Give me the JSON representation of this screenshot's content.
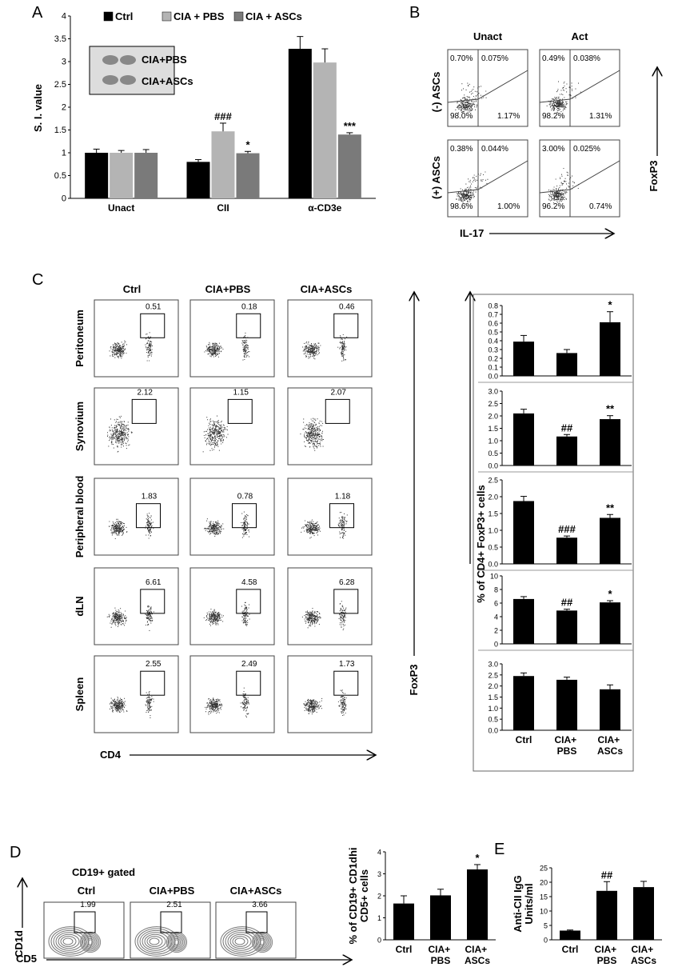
{
  "panel_labels": [
    "A",
    "B",
    "C",
    "D",
    "E"
  ],
  "chart_data": [
    {
      "type": "grouped-bar",
      "y_label": "S. I. value",
      "categories": [
        "Unact",
        "CII",
        "α-CD3e"
      ],
      "series": [
        {
          "name": "Ctrl",
          "color": "#000000",
          "values": [
            1.0,
            0.8,
            3.28
          ],
          "errors": [
            0.08,
            0.05,
            0.27
          ],
          "value_annotations": [
            null,
            null,
            null
          ]
        },
        {
          "name": "CIA + PBS",
          "color": "#b4b4b4",
          "values": [
            1.0,
            1.47,
            2.98
          ],
          "errors": [
            0.05,
            0.18,
            0.3
          ],
          "value_annotations": [
            null,
            "###",
            null
          ]
        },
        {
          "name": "CIA + ASCs",
          "color": "#7a7a7a",
          "values": [
            1.0,
            0.99,
            1.4
          ],
          "errors": [
            0.07,
            0.04,
            0.04
          ],
          "value_annotations": [
            null,
            "*",
            "***"
          ]
        }
      ],
      "ylim": [
        0,
        4
      ],
      "yticks": [
        0,
        0.5,
        1,
        1.5,
        2,
        2.5,
        3,
        3.5,
        4
      ],
      "inset_labels": [
        "CIA+PBS",
        "CIA+ASCs"
      ]
    },
    {
      "type": "bar",
      "color": "#000000",
      "values": [
        0.39,
        0.26,
        0.61
      ],
      "errors": [
        0.07,
        0.04,
        0.12
      ],
      "value_annotations": [
        null,
        null,
        "*"
      ],
      "ylim": [
        0,
        0.8
      ],
      "yticks": [
        {
          "value": 0,
          "label": "0.0"
        },
        0.1,
        0.2,
        0.3,
        0.4,
        0.5,
        0.6,
        0.7,
        0.8
      ]
    },
    {
      "type": "bar",
      "color": "#000000",
      "values": [
        2.1,
        1.17,
        1.87
      ],
      "errors": [
        0.17,
        0.08,
        0.14
      ],
      "value_annotations": [
        null,
        "##",
        "**"
      ],
      "ylim": [
        0,
        3
      ],
      "yticks": [
        {
          "value": 0,
          "label": "0.0"
        },
        0.5,
        {
          "value": 1,
          "label": "1.0"
        },
        1.5,
        {
          "value": 2,
          "label": "2.0"
        },
        2.5,
        {
          "value": 3,
          "label": "3.0"
        }
      ]
    },
    {
      "type": "bar",
      "color": "#000000",
      "values": [
        1.87,
        0.78,
        1.37
      ],
      "errors": [
        0.14,
        0.05,
        0.1
      ],
      "value_annotations": [
        null,
        "###",
        "**"
      ],
      "ylim": [
        0,
        2.5
      ],
      "yticks": [
        {
          "value": 0,
          "label": "0.0"
        },
        0.5,
        {
          "value": 1,
          "label": "1.0"
        },
        1.5,
        {
          "value": 2,
          "label": "2.0"
        },
        2.5
      ]
    },
    {
      "type": "bar",
      "color": "#000000",
      "values": [
        6.6,
        4.9,
        6.1
      ],
      "errors": [
        0.35,
        0.2,
        0.25
      ],
      "value_annotations": [
        null,
        "##",
        "*"
      ],
      "ylim": [
        0,
        10
      ],
      "yticks": [
        0,
        2,
        4,
        6,
        8,
        10
      ]
    },
    {
      "type": "bar",
      "color": "#000000",
      "values": [
        2.45,
        2.28,
        1.85
      ],
      "errors": [
        0.14,
        0.12,
        0.2
      ],
      "value_annotations": [
        null,
        null,
        null
      ],
      "ylim": [
        0,
        3
      ],
      "yticks": [
        {
          "value": 0,
          "label": "0.0"
        },
        0.5,
        {
          "value": 1,
          "label": "1.0"
        },
        1.5,
        {
          "value": 2,
          "label": "2.0"
        },
        2.5,
        {
          "value": 3,
          "label": "3.0"
        }
      ],
      "categories": [
        "Ctrl",
        "CIA+ PBS",
        "CIA+ ASCs"
      ],
      "y_label": "% of CD4+ FoxP3+ cells"
    },
    {
      "type": "bar",
      "color": "#000000",
      "values": [
        1.65,
        2.02,
        3.2
      ],
      "errors": [
        0.35,
        0.28,
        0.22
      ],
      "value_annotations": [
        null,
        null,
        "*"
      ],
      "ylim": [
        0,
        4
      ],
      "yticks": [
        0,
        1,
        2,
        3,
        4
      ],
      "categories": [
        "Ctrl",
        "CIA+ PBS",
        "CIA+ ASCs"
      ],
      "y_label": [
        "% of CD19+ CD1dhi",
        "CD5+ cells"
      ]
    },
    {
      "type": "bar",
      "color": "#000000",
      "values": [
        3.2,
        17,
        18.3
      ],
      "errors": [
        0.2,
        3.2,
        2
      ],
      "value_annotations": [
        null,
        "##",
        null
      ],
      "ylim": [
        0,
        25
      ],
      "yticks": [
        0,
        5,
        10,
        15,
        20,
        25
      ],
      "categories": [
        "Ctrl",
        "CIA+ PBS",
        "CIA+ ASCs"
      ],
      "y_label": [
        "Anti-CII IgG",
        "Units/ml"
      ]
    }
  ],
  "panel_b": {
    "columns": [
      "Unact",
      "Act"
    ],
    "rows": [
      "(-) ASCs",
      "(+) ASCs"
    ],
    "quadrants": [
      [
        "0.70%",
        "0.075%",
        "98.0%",
        "1.17%"
      ],
      [
        "0.49%",
        "0.038%",
        "98.2%",
        "1.31%"
      ],
      [
        "0.38%",
        "0.044%",
        "98.6%",
        "1.00%"
      ],
      [
        "3.00%",
        "0.025%",
        "96.2%",
        "0.74%"
      ]
    ],
    "x_label": "IL-17",
    "y_label": "FoxP3"
  },
  "panel_c": {
    "columns": [
      "Ctrl",
      "CIA+PBS",
      "CIA+ASCs"
    ],
    "rows": [
      "Peritoneum",
      "Synovium",
      "Peripheral blood",
      "dLN",
      "Spleen"
    ],
    "gates": [
      [
        "0.51",
        "0.18",
        "0.46"
      ],
      [
        "2.12",
        "1.15",
        "2.07"
      ],
      [
        "1.83",
        "0.78",
        "1.18"
      ],
      [
        "6.61",
        "4.58",
        "6.28"
      ],
      [
        "2.55",
        "2.49",
        "1.73"
      ]
    ],
    "x_label": "CD4",
    "y_label": "FoxP3"
  },
  "panel_d": {
    "gating": "CD19+ gated",
    "columns": [
      "Ctrl",
      "CIA+PBS",
      "CIA+ASCs"
    ],
    "gates": [
      "1.99",
      "2.51",
      "3.66"
    ],
    "x_label": "CD5",
    "y_label": "CD1d"
  }
}
